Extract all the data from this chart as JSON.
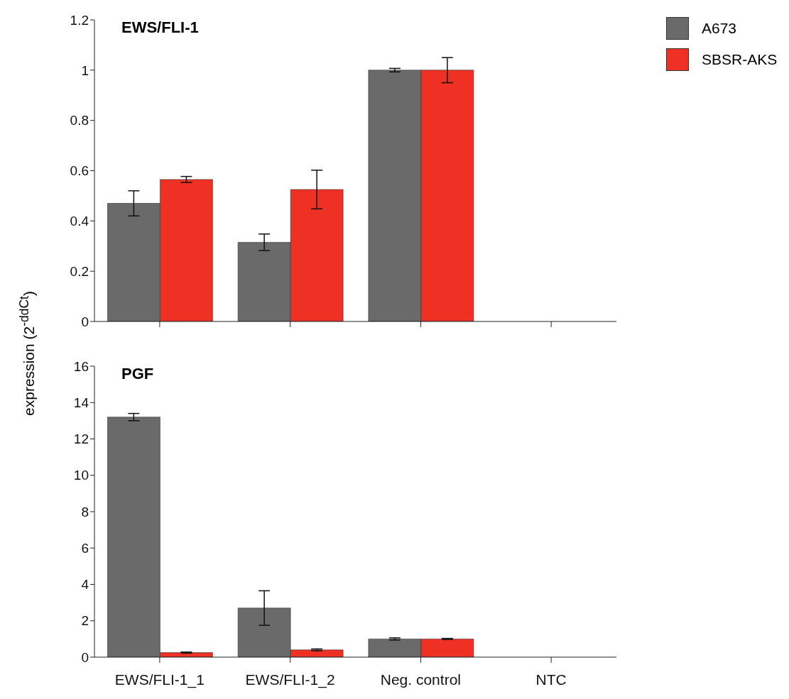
{
  "chart_data": [
    {
      "type": "bar",
      "title": "EWS/FLI-1",
      "ylabel": "expression (2$^{-ddCt}$)",
      "categories": [
        null,
        null,
        null,
        null
      ],
      "series": [
        {
          "name": "A673",
          "color": "#6a6a6a",
          "values": [
            0.47,
            0.315,
            1.0,
            0
          ],
          "errors": [
            0.05,
            0.033,
            0.007,
            null
          ]
        },
        {
          "name": "SBSR-AKS",
          "color": "#ee3124",
          "values": [
            0.565,
            0.525,
            1.0,
            0
          ],
          "errors": [
            0.012,
            0.077,
            0.05,
            null
          ]
        }
      ],
      "ylim": [
        0,
        1.2
      ],
      "yticks": [
        0,
        0.2,
        0.4,
        0.6,
        0.8,
        1,
        1.2
      ],
      "tick_labels": "y",
      "legend": "right",
      "grid": false
    },
    {
      "type": "bar",
      "title": "PGF",
      "categories": [
        "EWS/FLI-1_1",
        "EWS/FLI-1_2",
        "Neg. control",
        "NTC"
      ],
      "series": [
        {
          "color": "#6a6a6a",
          "values": [
            13.2,
            2.7,
            1.0,
            0
          ],
          "errors": [
            0.2,
            0.95,
            0.06,
            null
          ]
        },
        {
          "color": "#ee3124",
          "values": [
            0.25,
            0.4,
            1.0,
            0
          ],
          "errors": [
            0.03,
            0.05,
            0.03,
            null
          ]
        }
      ],
      "ylim": [
        0,
        16
      ],
      "yticks": [
        0,
        2,
        4,
        6,
        8,
        10,
        12,
        14,
        16
      ],
      "grid": false
    }
  ]
}
